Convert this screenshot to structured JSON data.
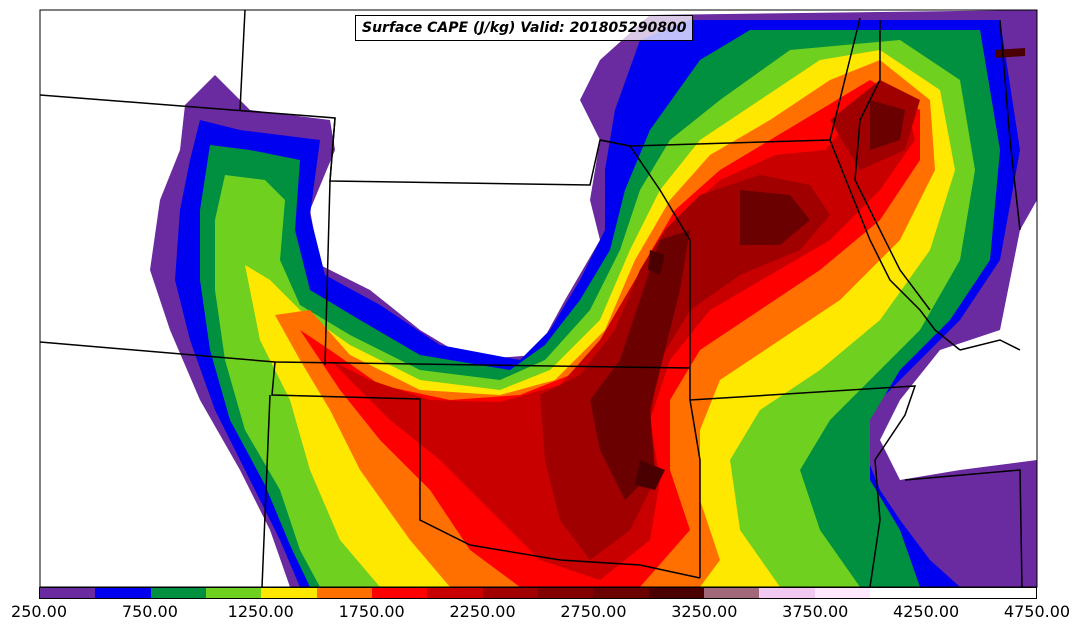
{
  "title": "Surface CAPE (J/kg) Valid: 201805290800",
  "colorbar": {
    "levels": [
      250,
      500,
      750,
      1000,
      1250,
      1500,
      1750,
      2000,
      2250,
      2500,
      2750,
      3000,
      3250,
      3500,
      3750,
      4000,
      4250,
      4500,
      4750
    ],
    "colors": [
      "#6a2aa0",
      "#0000f0",
      "#009040",
      "#70d020",
      "#ffe800",
      "#ff7000",
      "#ff0000",
      "#c80000",
      "#a00000",
      "#820000",
      "#6a0000",
      "#4a0000",
      "#a06878",
      "#f0c8f0",
      "#ffe8ff",
      "#ffffff",
      "#ffffff",
      "#ffffff"
    ],
    "tick_labels": [
      "250.00",
      "750.00",
      "1250.00",
      "1750.00",
      "2250.00",
      "2750.00",
      "3250.00",
      "3750.00",
      "4250.00",
      "4750.00"
    ]
  }
}
